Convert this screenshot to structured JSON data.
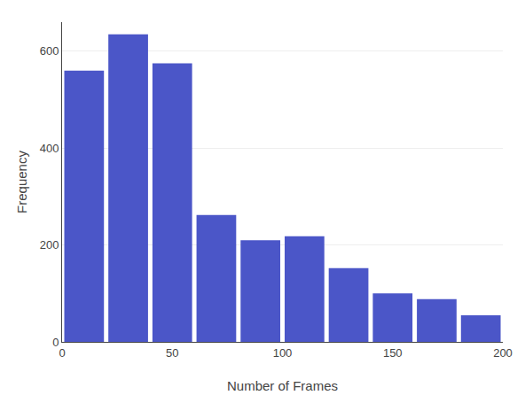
{
  "chart_data": {
    "type": "bar",
    "xlabel": "Number of Frames",
    "ylabel": "Frequency",
    "x": [
      10,
      30,
      50,
      70,
      90,
      110,
      130,
      150,
      170,
      190
    ],
    "values": [
      560,
      635,
      575,
      262,
      210,
      218,
      152,
      100,
      88,
      55
    ],
    "color": "#4b56c8",
    "xlim": [
      0,
      200
    ],
    "ylim": [
      0,
      660
    ],
    "xticks": [
      0,
      50,
      100,
      150,
      200
    ],
    "yticks": [
      0,
      200,
      400,
      600
    ],
    "grid": true
  }
}
